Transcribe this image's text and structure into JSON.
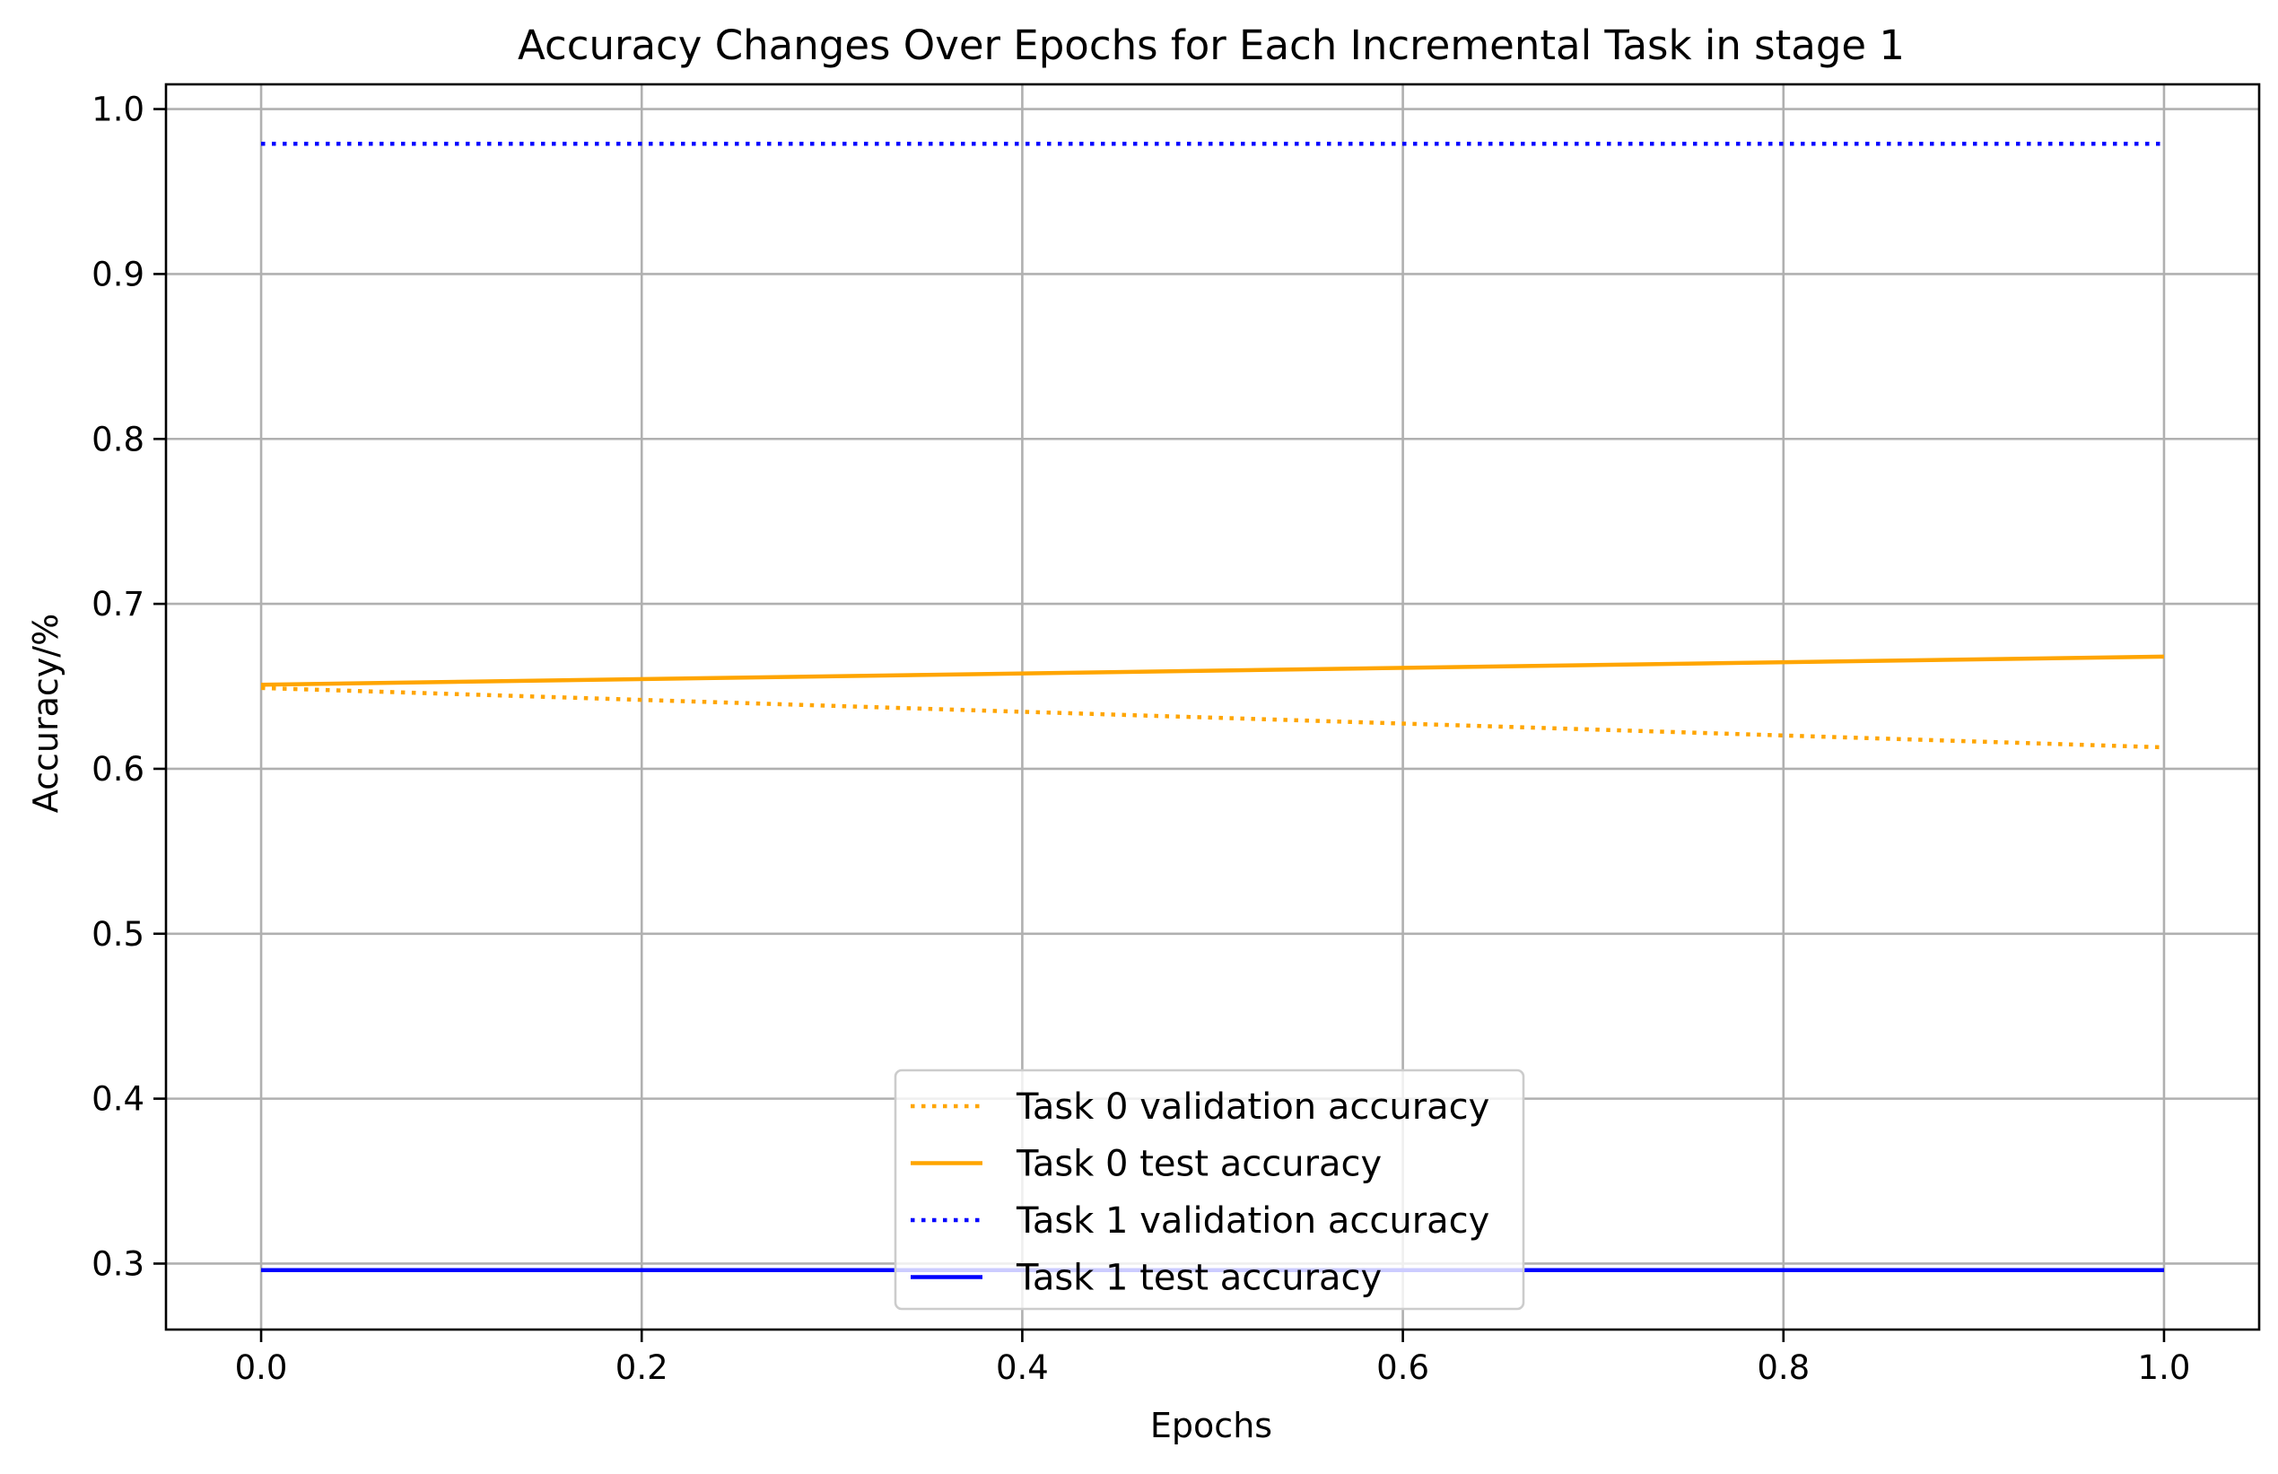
{
  "chart_data": {
    "type": "line",
    "title": "Accuracy Changes Over Epochs for Each Incremental Task in stage 1",
    "xlabel": "Epochs",
    "ylabel": "Accuracy/%",
    "xlim": [
      -0.05,
      1.05
    ],
    "ylim": [
      0.26,
      1.015
    ],
    "xticks": [
      0.0,
      0.2,
      0.4,
      0.6,
      0.8,
      1.0
    ],
    "xtick_labels": [
      "0.0",
      "0.2",
      "0.4",
      "0.6",
      "0.8",
      "1.0"
    ],
    "yticks": [
      0.3,
      0.4,
      0.5,
      0.6,
      0.7,
      0.8,
      0.9,
      1.0
    ],
    "ytick_labels": [
      "0.3",
      "0.4",
      "0.5",
      "0.6",
      "0.7",
      "0.8",
      "0.9",
      "1.0"
    ],
    "grid": true,
    "legend_position": "lower-center",
    "series": [
      {
        "name": "Task 0 validation accuracy",
        "color": "#ffa500",
        "style": "dotted",
        "x": [
          0,
          1
        ],
        "y": [
          0.649,
          0.613
        ]
      },
      {
        "name": "Task 0 test accuracy",
        "color": "#ffa500",
        "style": "solid",
        "x": [
          0,
          1
        ],
        "y": [
          0.651,
          0.668
        ]
      },
      {
        "name": "Task 1 validation accuracy",
        "color": "#0000ff",
        "style": "dotted",
        "x": [
          0,
          1
        ],
        "y": [
          0.979,
          0.979
        ]
      },
      {
        "name": "Task 1 test accuracy",
        "color": "#0000ff",
        "style": "solid",
        "x": [
          0,
          1
        ],
        "y": [
          0.296,
          0.296
        ]
      }
    ]
  }
}
